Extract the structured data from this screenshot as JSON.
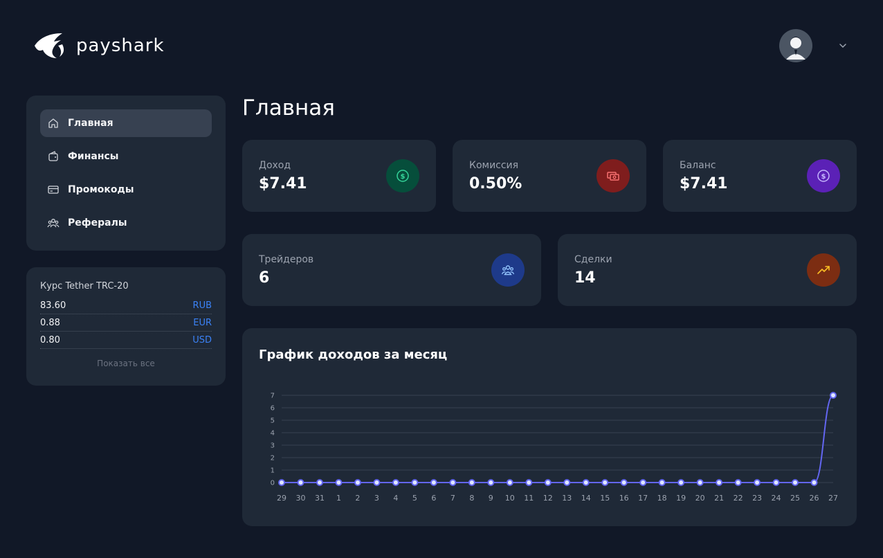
{
  "brand": {
    "name": "payshark"
  },
  "header": {
    "avatar_icon": "user-avatar",
    "menu_icon": "chevron-down-icon"
  },
  "sidebar": {
    "items": [
      {
        "label": "Главная",
        "icon": "home-icon",
        "active": true
      },
      {
        "label": "Финансы",
        "icon": "wallet-icon",
        "active": false
      },
      {
        "label": "Промокоды",
        "icon": "card-icon",
        "active": false
      },
      {
        "label": "Рефералы",
        "icon": "users-icon",
        "active": false
      }
    ]
  },
  "rates": {
    "title": "Курс Tether TRC-20",
    "rows": [
      {
        "value": "83.60",
        "currency": "RUB"
      },
      {
        "value": "0.88",
        "currency": "EUR"
      },
      {
        "value": "0.80",
        "currency": "USD"
      }
    ],
    "show_all": "Показать все"
  },
  "main": {
    "title": "Главная",
    "stats": [
      {
        "label": "Доход",
        "value": "$7.41",
        "icon": "dollar-circle-icon",
        "bg": "#064e3b",
        "fg": "#34d399"
      },
      {
        "label": "Комиссия",
        "value": "0.50%",
        "icon": "cash-icon",
        "bg": "#7f1d1d",
        "fg": "#f87171"
      },
      {
        "label": "Баланс",
        "value": "$7.41",
        "icon": "dollar-circle-icon",
        "bg": "#5b21b6",
        "fg": "#c4b5fd"
      },
      {
        "label": "Трейдеров",
        "value": "6",
        "icon": "users-icon",
        "bg": "#1e3a8a",
        "fg": "#93c5fd"
      },
      {
        "label": "Сделки",
        "value": "14",
        "icon": "trending-up-icon",
        "bg": "#7c2d12",
        "fg": "#fbbf24"
      }
    ],
    "chart_title": "График доходов за месяц"
  },
  "chart_data": {
    "type": "line",
    "title": "График доходов за месяц",
    "categories": [
      "29",
      "30",
      "31",
      "1",
      "2",
      "3",
      "4",
      "5",
      "6",
      "7",
      "8",
      "9",
      "10",
      "11",
      "12",
      "13",
      "14",
      "15",
      "16",
      "17",
      "18",
      "19",
      "20",
      "21",
      "22",
      "23",
      "24",
      "25",
      "26",
      "27"
    ],
    "values": [
      0,
      0,
      0,
      0,
      0,
      0,
      0,
      0,
      0,
      0,
      0,
      0,
      0,
      0,
      0,
      0,
      0,
      0,
      0,
      0,
      0,
      0,
      0,
      0,
      0,
      0,
      0,
      0,
      0,
      7
    ],
    "ylim": [
      0,
      7
    ],
    "yticks": [
      0,
      1,
      2,
      3,
      4,
      5,
      6,
      7
    ],
    "grid": true,
    "line_color": "#6366f1"
  }
}
